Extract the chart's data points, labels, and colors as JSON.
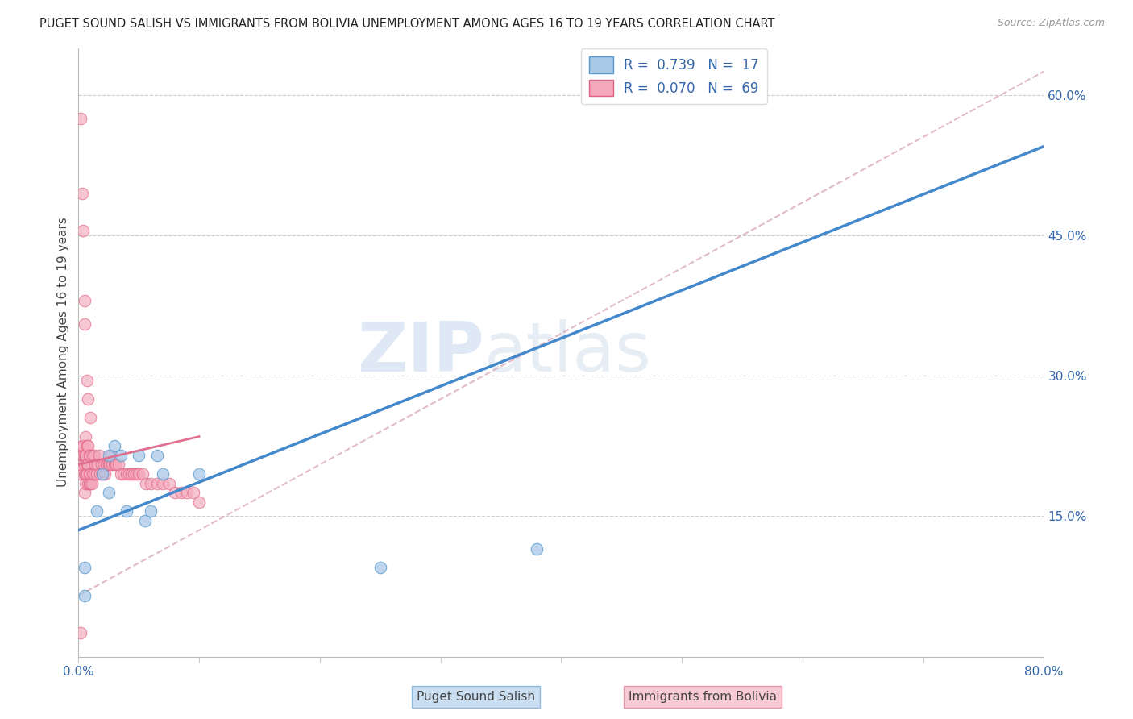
{
  "title": "PUGET SOUND SALISH VS IMMIGRANTS FROM BOLIVIA UNEMPLOYMENT AMONG AGES 16 TO 19 YEARS CORRELATION CHART",
  "source": "Source: ZipAtlas.com",
  "ylabel": "Unemployment Among Ages 16 to 19 years",
  "xlim": [
    0,
    0.8
  ],
  "ylim": [
    0,
    0.65
  ],
  "xtick_positions": [
    0.0,
    0.1,
    0.2,
    0.3,
    0.4,
    0.5,
    0.6,
    0.7,
    0.8
  ],
  "xticklabels": [
    "0.0%",
    "",
    "",
    "",
    "",
    "",
    "",
    "",
    "80.0%"
  ],
  "ytick_positions": [
    0.15,
    0.3,
    0.45,
    0.6
  ],
  "ytick_labels": [
    "15.0%",
    "30.0%",
    "45.0%",
    "60.0%"
  ],
  "watermark_zip": "ZIP",
  "watermark_atlas": "atlas",
  "legend_label1": "R =  0.739   N =  17",
  "legend_label2": "R =  0.070   N =  69",
  "color_blue": "#a8c8e8",
  "color_pink": "#f4a8bc",
  "edge_blue": "#5599cc",
  "edge_pink": "#e06080",
  "line_blue": "#4488cc",
  "line_pink": "#e07090",
  "line_dashed_color": "#dbaabb",
  "blue_line_x0": 0.0,
  "blue_line_y0": 0.135,
  "blue_line_x1": 0.8,
  "blue_line_y1": 0.545,
  "pink_line_x0": 0.0,
  "pink_line_y0": 0.205,
  "pink_line_x1": 0.1,
  "pink_line_y1": 0.235,
  "dashed_line_x0": 0.0,
  "dashed_line_y0": 0.065,
  "dashed_line_x1": 0.8,
  "dashed_line_y1": 0.625,
  "blue_x": [
    0.005,
    0.005,
    0.015,
    0.02,
    0.025,
    0.025,
    0.03,
    0.035,
    0.04,
    0.05,
    0.055,
    0.06,
    0.065,
    0.07,
    0.1,
    0.25,
    0.38
  ],
  "blue_y": [
    0.065,
    0.095,
    0.155,
    0.195,
    0.175,
    0.215,
    0.225,
    0.215,
    0.155,
    0.215,
    0.145,
    0.155,
    0.215,
    0.195,
    0.195,
    0.095,
    0.115
  ],
  "pink_x": [
    0.002,
    0.002,
    0.003,
    0.003,
    0.004,
    0.004,
    0.005,
    0.005,
    0.005,
    0.005,
    0.006,
    0.006,
    0.006,
    0.006,
    0.007,
    0.007,
    0.007,
    0.008,
    0.008,
    0.008,
    0.009,
    0.009,
    0.009,
    0.01,
    0.01,
    0.01,
    0.011,
    0.012,
    0.012,
    0.013,
    0.013,
    0.014,
    0.015,
    0.016,
    0.017,
    0.018,
    0.019,
    0.02,
    0.021,
    0.022,
    0.023,
    0.024,
    0.025,
    0.026,
    0.027,
    0.028,
    0.03,
    0.031,
    0.033,
    0.035,
    0.037,
    0.04,
    0.042,
    0.044,
    0.046,
    0.048,
    0.05,
    0.053,
    0.056,
    0.06,
    0.065,
    0.07,
    0.075,
    0.08,
    0.085,
    0.09,
    0.095,
    0.1,
    0.002
  ],
  "pink_y": [
    0.195,
    0.205,
    0.215,
    0.225,
    0.215,
    0.225,
    0.175,
    0.195,
    0.205,
    0.215,
    0.185,
    0.195,
    0.215,
    0.235,
    0.195,
    0.205,
    0.225,
    0.185,
    0.205,
    0.225,
    0.185,
    0.195,
    0.215,
    0.185,
    0.195,
    0.215,
    0.185,
    0.195,
    0.215,
    0.195,
    0.215,
    0.205,
    0.195,
    0.205,
    0.215,
    0.195,
    0.205,
    0.195,
    0.205,
    0.195,
    0.205,
    0.205,
    0.205,
    0.205,
    0.215,
    0.205,
    0.205,
    0.205,
    0.205,
    0.195,
    0.195,
    0.195,
    0.195,
    0.195,
    0.195,
    0.195,
    0.195,
    0.195,
    0.185,
    0.185,
    0.185,
    0.185,
    0.185,
    0.175,
    0.175,
    0.175,
    0.175,
    0.165,
    0.025
  ],
  "pink_outliers_x": [
    0.002,
    0.003,
    0.004,
    0.005,
    0.005,
    0.007,
    0.008,
    0.01
  ],
  "pink_outliers_y": [
    0.575,
    0.495,
    0.455,
    0.38,
    0.355,
    0.295,
    0.275,
    0.255
  ]
}
